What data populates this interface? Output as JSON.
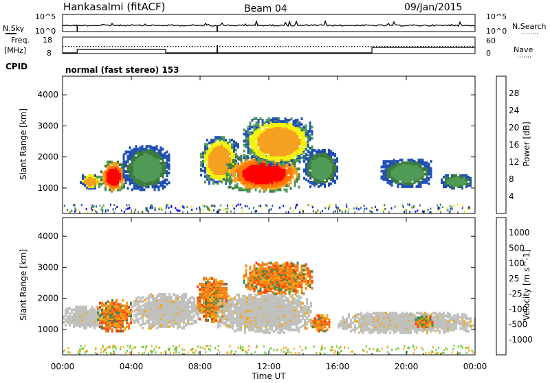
{
  "header": {
    "station": "Hankasalmi (fitACF)",
    "beam": "Beam 04",
    "date": "09/Jan/2015"
  },
  "noise_panel": {
    "left_label": "N.Sky",
    "left_ticks": [
      "10^5",
      "10^0"
    ],
    "right_label": "N.Search",
    "right_ticks": [
      "10^5",
      "10^0"
    ]
  },
  "freq_panel": {
    "left_label_line1": "Freq.",
    "left_label_line2": "[MHz]",
    "left_ticks": [
      "18",
      "8"
    ],
    "right_label": "Nave",
    "right_ticks": [
      "60",
      "0"
    ]
  },
  "cpid": {
    "label": "CPID",
    "value": "normal (fast stereo) 153"
  },
  "colors": {
    "power_scale": [
      "#0000ff",
      "#1f4fb4",
      "#3a7a3a",
      "#4f9a55",
      "#f2f20a",
      "#f5a020",
      "#ff7400",
      "#ff0000"
    ],
    "velocity_scale": [
      "#1414c8",
      "#2d6aaf",
      "#3d8a52",
      "#66cc33",
      "#bfbfbf",
      "#c8c8c8",
      "#f2a81a",
      "#f57d16",
      "#f04410",
      "#ff0000"
    ],
    "ground_scatter": "#c0c0bc"
  },
  "chart_data": [
    {
      "type": "heatmap",
      "name_shown": "Power",
      "ylabel": "Slant Range [km]",
      "yticks": [
        "4000",
        "3000",
        "2000",
        "1000"
      ],
      "ylim": [
        180,
        4600
      ],
      "xlim_hours": [
        0,
        24
      ],
      "colorbar": {
        "label": "Power [dB]",
        "ticks": [
          "28",
          "24",
          "20",
          "16",
          "12",
          "8",
          "4"
        ],
        "range": [
          0,
          32
        ]
      },
      "regions": [
        {
          "t0": 2.2,
          "t1": 3.6,
          "r0": 850,
          "r1": 1800,
          "level": "high"
        },
        {
          "t0": 1.0,
          "t1": 2.2,
          "r0": 950,
          "r1": 1400,
          "level": "mid"
        },
        {
          "t0": 3.5,
          "t1": 6.2,
          "r0": 900,
          "r1": 2300,
          "level": "low"
        },
        {
          "t0": 8.0,
          "t1": 10.2,
          "r0": 1100,
          "r1": 2600,
          "level": "mid"
        },
        {
          "t0": 9.5,
          "t1": 13.8,
          "r0": 850,
          "r1": 2000,
          "level": "high"
        },
        {
          "t0": 10.5,
          "t1": 14.5,
          "r0": 1700,
          "r1": 3200,
          "level": "mid"
        },
        {
          "t0": 14.0,
          "t1": 16.0,
          "r0": 1000,
          "r1": 2200,
          "level": "low"
        },
        {
          "t0": 18.5,
          "t1": 21.5,
          "r0": 1000,
          "r1": 1900,
          "level": "low"
        },
        {
          "t0": 22.0,
          "t1": 23.8,
          "r0": 950,
          "r1": 1400,
          "level": "low"
        }
      ]
    },
    {
      "type": "heatmap",
      "name_shown": "Velocity",
      "ylabel": "Slant Range [km]",
      "yticks": [
        "4000",
        "3000",
        "2000",
        "1000"
      ],
      "ylim": [
        180,
        4600
      ],
      "xlim_hours": [
        0,
        24
      ],
      "xlabel": "Time UT",
      "xticks": [
        "00:00",
        "04:00",
        "08:00",
        "12:00",
        "16:00",
        "20:00",
        "00:00"
      ],
      "colorbar": {
        "label": "Velocity [m s^-1]",
        "ticks": [
          "1000",
          "500",
          "100",
          "25",
          "-25",
          "-100",
          "-500",
          "-1000"
        ],
        "range": [
          -1200,
          1200
        ]
      },
      "regions": [
        {
          "t0": 0.0,
          "t1": 2.5,
          "r0": 1000,
          "r1": 1700,
          "level": "ground"
        },
        {
          "t0": 2.0,
          "t1": 4.0,
          "r0": 900,
          "r1": 1900,
          "level": "neg"
        },
        {
          "t0": 4.0,
          "t1": 8.0,
          "r0": 1000,
          "r1": 2100,
          "level": "ground"
        },
        {
          "t0": 7.8,
          "t1": 9.5,
          "r0": 1200,
          "r1": 2600,
          "level": "neg"
        },
        {
          "t0": 9.0,
          "t1": 14.5,
          "r0": 850,
          "r1": 2100,
          "level": "ground"
        },
        {
          "t0": 10.5,
          "t1": 14.5,
          "r0": 2100,
          "r1": 3100,
          "level": "neg"
        },
        {
          "t0": 14.5,
          "t1": 15.5,
          "r0": 900,
          "r1": 1400,
          "level": "neg"
        },
        {
          "t0": 16.0,
          "t1": 24.0,
          "r0": 850,
          "r1": 1500,
          "level": "ground"
        },
        {
          "t0": 20.5,
          "t1": 21.5,
          "r0": 1000,
          "r1": 1400,
          "level": "neg"
        }
      ]
    }
  ]
}
